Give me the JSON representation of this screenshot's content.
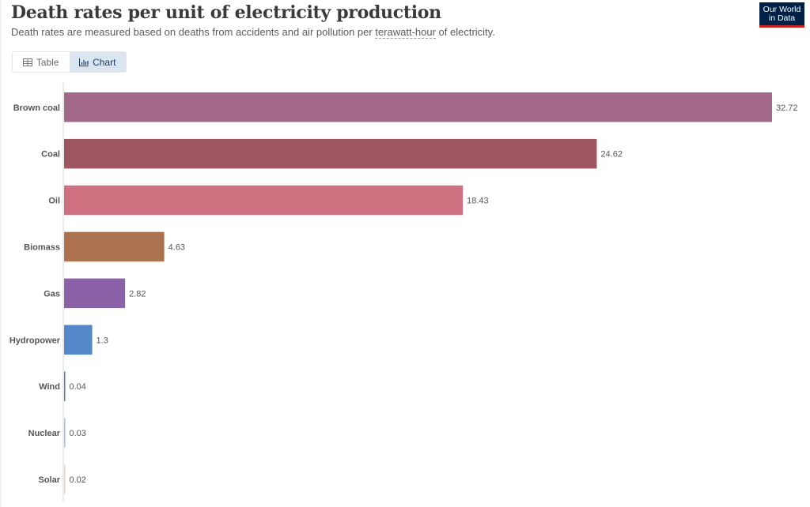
{
  "header": {
    "title": "Death rates per unit of electricity production",
    "subtitle_before": "Death rates are measured based on deaths from accidents and air pollution per ",
    "subtitle_term": "terawatt-hour",
    "subtitle_after": " of electricity.",
    "logo_line1": "Our World",
    "logo_line2": "in Data"
  },
  "tabs": [
    {
      "label": "Table",
      "icon": "table-icon",
      "active": false
    },
    {
      "label": "Chart",
      "icon": "chart-icon",
      "active": true
    }
  ],
  "colors": {
    "logo_bg": "#002147",
    "logo_accent": "#ce261e"
  },
  "chart_data": {
    "type": "bar",
    "orientation": "horizontal",
    "title": "Death rates per unit of electricity production",
    "xlabel": "",
    "ylabel": "",
    "unit": "deaths per terawatt-hour",
    "xlim": [
      0,
      32.72
    ],
    "grid": false,
    "categories": [
      "Brown coal",
      "Coal",
      "Oil",
      "Biomass",
      "Gas",
      "Hydropower",
      "Wind",
      "Nuclear",
      "Solar"
    ],
    "values": [
      32.72,
      24.62,
      18.43,
      4.63,
      2.82,
      1.3,
      0.04,
      0.03,
      0.02
    ],
    "value_labels": [
      "32.72",
      "24.62",
      "18.43",
      "4.63",
      "2.82",
      "1.3",
      "0.04",
      "0.03",
      "0.02"
    ],
    "colors": [
      "#a2698a",
      "#9e5660",
      "#cf7181",
      "#ad7350",
      "#8b62a8",
      "#5287c8",
      "#637aa1",
      "#a0c0e2",
      "#ecd4bc"
    ]
  }
}
